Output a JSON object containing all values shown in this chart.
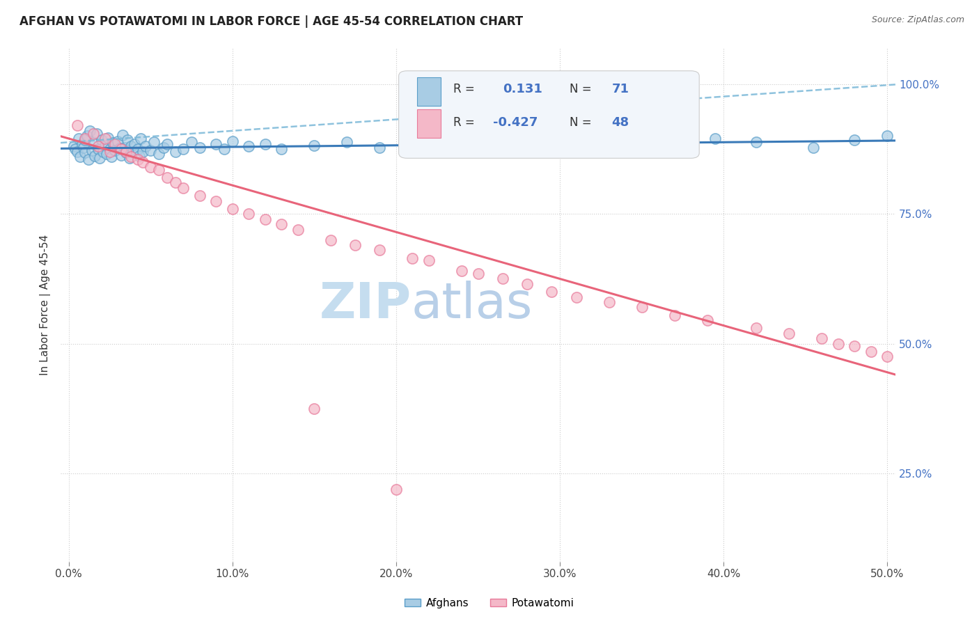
{
  "title": "AFGHAN VS POTAWATOMI IN LABOR FORCE | AGE 45-54 CORRELATION CHART",
  "source": "Source: ZipAtlas.com",
  "ylabel": "In Labor Force | Age 45-54",
  "R_afghan": 0.131,
  "N_afghan": 71,
  "R_potawatomi": -0.427,
  "N_potawatomi": 48,
  "afghan_fill_color": "#a8cce4",
  "afghan_edge_color": "#5a9ec9",
  "potawatomi_fill_color": "#f4b8c8",
  "potawatomi_edge_color": "#e87a9a",
  "afghan_line_color": "#3a7ab8",
  "potawatomi_line_color": "#e8647a",
  "dashed_line_color": "#7ab8d8",
  "watermark_zip_color": "#c8ddf0",
  "watermark_atlas_color": "#b0c8e0",
  "legend_label_afghan": "Afghans",
  "legend_label_potawatomi": "Potawatomi",
  "R_val_color": "#4472c4",
  "N_val_color": "#4472c4",
  "right_tick_color": "#4472c4",
  "xlim": [
    -0.005,
    0.505
  ],
  "ylim": [
    0.08,
    1.07
  ],
  "xticks": [
    0.0,
    0.1,
    0.2,
    0.3,
    0.4,
    0.5
  ],
  "xtick_labels": [
    "0.0%",
    "10.0%",
    "20.0%",
    "30.0%",
    "40.0%",
    "50.0%"
  ],
  "yticks_right": [
    1.0,
    0.75,
    0.5,
    0.25
  ],
  "ytick_right_labels": [
    "100.0%",
    "75.0%",
    "50.0%",
    "25.0%"
  ],
  "afghan_x": [
    0.003,
    0.004,
    0.005,
    0.006,
    0.007,
    0.008,
    0.009,
    0.01,
    0.01,
    0.011,
    0.012,
    0.013,
    0.014,
    0.015,
    0.016,
    0.017,
    0.018,
    0.019,
    0.02,
    0.021,
    0.022,
    0.023,
    0.024,
    0.025,
    0.026,
    0.027,
    0.028,
    0.03,
    0.031,
    0.032,
    0.033,
    0.034,
    0.035,
    0.036,
    0.037,
    0.038,
    0.039,
    0.04,
    0.042,
    0.043,
    0.044,
    0.045,
    0.047,
    0.05,
    0.052,
    0.055,
    0.058,
    0.06,
    0.065,
    0.07,
    0.075,
    0.08,
    0.09,
    0.095,
    0.1,
    0.11,
    0.12,
    0.13,
    0.15,
    0.17,
    0.19,
    0.22,
    0.26,
    0.3,
    0.33,
    0.36,
    0.395,
    0.42,
    0.455,
    0.48,
    0.5
  ],
  "afghan_y": [
    0.88,
    0.875,
    0.87,
    0.895,
    0.86,
    0.885,
    0.878,
    0.892,
    0.868,
    0.9,
    0.855,
    0.91,
    0.872,
    0.888,
    0.862,
    0.905,
    0.875,
    0.858,
    0.893,
    0.87,
    0.882,
    0.865,
    0.897,
    0.875,
    0.86,
    0.887,
    0.872,
    0.89,
    0.876,
    0.863,
    0.902,
    0.878,
    0.868,
    0.893,
    0.857,
    0.88,
    0.87,
    0.885,
    0.875,
    0.862,
    0.895,
    0.87,
    0.88,
    0.872,
    0.888,
    0.865,
    0.878,
    0.885,
    0.87,
    0.875,
    0.888,
    0.878,
    0.885,
    0.875,
    0.89,
    0.88,
    0.885,
    0.875,
    0.882,
    0.888,
    0.878,
    0.885,
    0.892,
    0.885,
    0.878,
    0.892,
    0.895,
    0.888,
    0.878,
    0.892,
    0.9
  ],
  "potawatomi_x": [
    0.005,
    0.01,
    0.015,
    0.018,
    0.022,
    0.025,
    0.028,
    0.032,
    0.035,
    0.038,
    0.042,
    0.045,
    0.05,
    0.055,
    0.06,
    0.065,
    0.07,
    0.08,
    0.09,
    0.1,
    0.11,
    0.12,
    0.13,
    0.14,
    0.16,
    0.175,
    0.19,
    0.21,
    0.22,
    0.24,
    0.25,
    0.265,
    0.28,
    0.295,
    0.31,
    0.33,
    0.35,
    0.37,
    0.39,
    0.42,
    0.44,
    0.46,
    0.47,
    0.48,
    0.49,
    0.5,
    0.15,
    0.2
  ],
  "potawatomi_y": [
    0.92,
    0.895,
    0.905,
    0.88,
    0.895,
    0.87,
    0.885,
    0.875,
    0.87,
    0.86,
    0.855,
    0.85,
    0.84,
    0.835,
    0.82,
    0.81,
    0.8,
    0.785,
    0.775,
    0.76,
    0.75,
    0.74,
    0.73,
    0.72,
    0.7,
    0.69,
    0.68,
    0.665,
    0.66,
    0.64,
    0.635,
    0.625,
    0.615,
    0.6,
    0.59,
    0.58,
    0.57,
    0.555,
    0.545,
    0.53,
    0.52,
    0.51,
    0.5,
    0.495,
    0.485,
    0.475,
    0.375,
    0.22
  ]
}
